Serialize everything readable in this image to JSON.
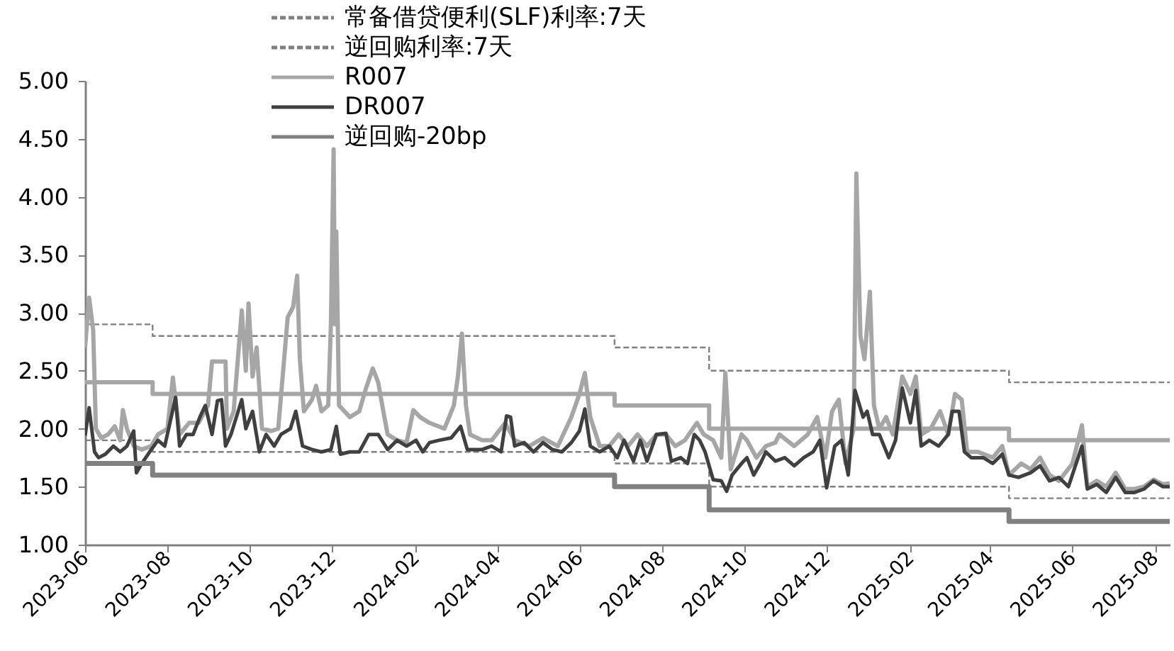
{
  "chart_data": {
    "type": "line",
    "xlim": [
      "2023-06-01",
      "2025-08-12"
    ],
    "xticks": [
      "2023-06",
      "2023-08",
      "2023-10",
      "2023-12",
      "2024-02",
      "2024-04",
      "2024-06",
      "2024-08",
      "2024-10",
      "2024-12",
      "2025-02",
      "2025-04",
      "2025-06",
      "2025-08"
    ],
    "ylim": [
      1,
      5
    ],
    "yticks": [
      {
        "value": 1,
        "label": "1.00"
      },
      {
        "value": 1.5,
        "label": "1.50"
      },
      {
        "value": 2,
        "label": "2.00"
      },
      {
        "value": 2.5,
        "label": "2.50"
      },
      {
        "value": 3,
        "label": "3.00"
      },
      {
        "value": 3.5,
        "label": "3.50"
      },
      {
        "value": 4,
        "label": "4.00"
      },
      {
        "value": 4.5,
        "label": "4.50"
      },
      {
        "value": 5,
        "label": "5.00"
      }
    ],
    "grid": false,
    "legend": "top",
    "marker": "none",
    "line_style": "solid",
    "series": [
      {
        "type": "step",
        "color": "#a6a6a6",
        "x": [
          "2023-06-01",
          "2023-07-21",
          "2024-06-27",
          "2024-09-05",
          "2025-04-15",
          "2025-08-12"
        ],
        "values": [
          2.4,
          2.3,
          2.2,
          2.0,
          1.9,
          1.9
        ]
      },
      {
        "name": "常备借贷便利(SLF)利率:7天",
        "type": "step",
        "color": "#808080",
        "line_style": "dashed",
        "x": [
          "2023-06-01",
          "2023-07-21",
          "2024-06-27",
          "2024-09-05",
          "2025-04-15",
          "2025-08-12"
        ],
        "values": [
          2.9,
          2.8,
          2.7,
          2.5,
          2.4,
          2.4
        ]
      },
      {
        "name": "逆回购利率:7天",
        "type": "step",
        "color": "#808080",
        "line_style": "dashed",
        "x": [
          "2023-06-01",
          "2023-07-21",
          "2024-06-27",
          "2024-09-05",
          "2025-04-15",
          "2025-08-12"
        ],
        "values": [
          1.9,
          1.8,
          1.7,
          1.5,
          1.4,
          1.4
        ]
      },
      {
        "name": "R007",
        "type": "line",
        "color": "#a6a6a6",
        "line_style": "solid",
        "x": [
          "2023-06-01",
          "2023-06-04",
          "2023-06-07",
          "2023-06-09",
          "2023-06-13",
          "2023-06-18",
          "2023-06-23",
          "2023-06-27",
          "2023-06-29",
          "2023-07-02",
          "2023-07-07",
          "2023-07-13",
          "2023-07-20",
          "2023-07-25",
          "2023-08-01",
          "2023-08-05",
          "2023-08-10",
          "2023-08-17",
          "2023-08-24",
          "2023-08-31",
          "2023-09-03",
          "2023-09-13",
          "2023-09-14",
          "2023-09-19",
          "2023-09-25",
          "2023-09-28",
          "2023-09-30",
          "2023-10-03",
          "2023-10-06",
          "2023-10-10",
          "2023-10-17",
          "2023-10-22",
          "2023-10-29",
          "2023-11-02",
          "2023-11-05",
          "2023-11-07",
          "2023-11-10",
          "2023-11-16",
          "2023-11-19",
          "2023-11-23",
          "2023-11-28",
          "2023-11-30",
          "2023-12-02",
          "2023-12-03",
          "2023-12-04",
          "2023-12-06",
          "2023-12-14",
          "2023-12-21",
          "2023-12-26",
          "2023-12-31",
          "2024-01-04",
          "2024-01-07",
          "2024-01-11",
          "2024-01-18",
          "2024-01-25",
          "2024-01-30",
          "2024-02-04",
          "2024-02-11",
          "2024-02-22",
          "2024-02-29",
          "2024-03-03",
          "2024-03-06",
          "2024-03-09",
          "2024-03-12",
          "2024-03-21",
          "2024-03-28",
          "2024-04-07",
          "2024-04-14",
          "2024-04-25",
          "2024-05-05",
          "2024-05-16",
          "2024-05-26",
          "2024-06-01",
          "2024-06-05",
          "2024-06-09",
          "2024-06-16",
          "2024-06-23",
          "2024-06-30",
          "2024-07-07",
          "2024-07-14",
          "2024-07-21",
          "2024-07-28",
          "2024-08-04",
          "2024-08-11",
          "2024-08-18",
          "2024-08-27",
          "2024-09-01",
          "2024-09-08",
          "2024-09-14",
          "2024-09-17",
          "2024-09-21",
          "2024-09-29",
          "2024-10-03",
          "2024-10-10",
          "2024-10-17",
          "2024-10-24",
          "2024-10-27",
          "2024-11-07",
          "2024-11-17",
          "2024-11-24",
          "2024-11-30",
          "2024-12-05",
          "2024-12-10",
          "2024-12-15",
          "2024-12-21",
          "2024-12-23",
          "2024-12-26",
          "2024-12-29",
          "2025-01-02",
          "2025-01-05",
          "2025-01-09",
          "2025-01-14",
          "2025-01-19",
          "2025-01-26",
          "2025-02-01",
          "2025-02-05",
          "2025-02-09",
          "2025-02-16",
          "2025-02-23",
          "2025-03-01",
          "2025-03-06",
          "2025-03-11",
          "2025-03-15",
          "2025-03-23",
          "2025-04-03",
          "2025-04-10",
          "2025-04-15",
          "2025-04-24",
          "2025-05-01",
          "2025-05-08",
          "2025-05-15",
          "2025-05-22",
          "2025-06-01",
          "2025-06-08",
          "2025-06-12",
          "2025-06-19",
          "2025-06-26",
          "2025-07-03",
          "2025-07-10",
          "2025-07-17",
          "2025-07-24",
          "2025-07-31",
          "2025-08-07",
          "2025-08-12"
        ],
        "values": [
          2.7,
          3.13,
          2.85,
          2.0,
          1.92,
          1.95,
          2.02,
          1.9,
          2.16,
          2.0,
          1.85,
          1.82,
          1.85,
          1.95,
          2.0,
          2.44,
          1.95,
          2.05,
          2.05,
          2.2,
          2.58,
          2.58,
          2.0,
          2.15,
          3.02,
          2.5,
          3.08,
          2.45,
          2.7,
          2.0,
          1.98,
          2.0,
          2.96,
          3.05,
          3.32,
          2.6,
          2.15,
          2.25,
          2.37,
          2.15,
          2.2,
          2.9,
          4.41,
          2.9,
          3.7,
          2.2,
          2.1,
          2.15,
          2.35,
          2.52,
          2.4,
          2.2,
          1.95,
          1.9,
          1.88,
          2.16,
          2.1,
          2.05,
          2.0,
          2.2,
          2.45,
          2.82,
          2.2,
          1.95,
          1.9,
          1.9,
          2.05,
          1.9,
          1.85,
          1.92,
          1.85,
          2.1,
          2.3,
          2.48,
          2.1,
          1.85,
          1.85,
          1.95,
          1.85,
          1.95,
          1.85,
          1.95,
          1.95,
          1.85,
          1.9,
          2.05,
          1.95,
          1.9,
          1.75,
          2.48,
          1.65,
          1.95,
          1.9,
          1.75,
          1.85,
          1.88,
          1.95,
          1.85,
          1.95,
          2.1,
          1.75,
          2.15,
          2.25,
          1.7,
          2.0,
          4.2,
          2.8,
          2.6,
          3.18,
          2.2,
          2.0,
          2.1,
          1.95,
          2.45,
          2.3,
          2.45,
          1.95,
          2.0,
          2.15,
          1.95,
          2.3,
          2.25,
          1.8,
          1.8,
          1.75,
          1.85,
          1.6,
          1.7,
          1.65,
          1.75,
          1.6,
          1.55,
          1.7,
          2.03,
          1.5,
          1.55,
          1.5,
          1.62,
          1.48,
          1.48,
          1.5,
          1.56,
          1.52,
          1.53
        ]
      },
      {
        "name": "DR007",
        "color": "#404040",
        "line_style": "solid",
        "x": [
          "2023-06-01",
          "2023-06-04",
          "2023-06-08",
          "2023-06-11",
          "2023-06-16",
          "2023-06-22",
          "2023-06-27",
          "2023-07-02",
          "2023-07-07",
          "2023-07-09",
          "2023-07-13",
          "2023-07-20",
          "2023-07-25",
          "2023-07-30",
          "2023-08-07",
          "2023-08-10",
          "2023-08-15",
          "2023-08-20",
          "2023-08-25",
          "2023-08-29",
          "2023-09-03",
          "2023-09-07",
          "2023-09-10",
          "2023-09-13",
          "2023-09-17",
          "2023-09-25",
          "2023-09-28",
          "2023-10-03",
          "2023-10-08",
          "2023-10-13",
          "2023-10-19",
          "2023-10-24",
          "2023-10-31",
          "2023-11-04",
          "2023-11-09",
          "2023-11-16",
          "2023-11-23",
          "2023-11-30",
          "2023-12-04",
          "2023-12-07",
          "2023-12-14",
          "2023-12-21",
          "2023-12-28",
          "2024-01-04",
          "2024-01-11",
          "2024-01-18",
          "2024-01-25",
          "2024-02-01",
          "2024-02-06",
          "2024-02-11",
          "2024-02-18",
          "2024-02-27",
          "2024-03-05",
          "2024-03-10",
          "2024-03-21",
          "2024-03-28",
          "2024-04-04",
          "2024-04-08",
          "2024-04-11",
          "2024-04-14",
          "2024-04-21",
          "2024-04-28",
          "2024-05-05",
          "2024-05-12",
          "2024-05-19",
          "2024-05-26",
          "2024-06-01",
          "2024-06-05",
          "2024-06-09",
          "2024-06-16",
          "2024-06-23",
          "2024-06-29",
          "2024-07-04",
          "2024-07-11",
          "2024-07-16",
          "2024-07-21",
          "2024-07-28",
          "2024-08-04",
          "2024-08-08",
          "2024-08-15",
          "2024-08-20",
          "2024-08-25",
          "2024-08-29",
          "2024-09-02",
          "2024-09-08",
          "2024-09-14",
          "2024-09-18",
          "2024-09-22",
          "2024-09-29",
          "2024-10-03",
          "2024-10-08",
          "2024-10-13",
          "2024-10-17",
          "2024-10-24",
          "2024-10-31",
          "2024-11-07",
          "2024-11-14",
          "2024-11-21",
          "2024-11-26",
          "2024-12-01",
          "2024-12-07",
          "2024-12-12",
          "2024-12-17",
          "2024-12-22",
          "2024-12-28",
          "2024-12-31",
          "2025-01-04",
          "2025-01-09",
          "2025-01-16",
          "2025-01-21",
          "2025-01-26",
          "2025-02-01",
          "2025-02-05",
          "2025-02-09",
          "2025-02-15",
          "2025-02-22",
          "2025-03-01",
          "2025-03-04",
          "2025-03-09",
          "2025-03-13",
          "2025-03-18",
          "2025-03-27",
          "2025-04-03",
          "2025-04-10",
          "2025-04-15",
          "2025-04-22",
          "2025-05-01",
          "2025-05-08",
          "2025-05-15",
          "2025-05-22",
          "2025-05-29",
          "2025-06-08",
          "2025-06-12",
          "2025-06-19",
          "2025-06-26",
          "2025-07-03",
          "2025-07-10",
          "2025-07-17",
          "2025-07-24",
          "2025-07-31",
          "2025-08-07",
          "2025-08-12"
        ],
        "values": [
          1.94,
          2.18,
          1.8,
          1.75,
          1.78,
          1.85,
          1.8,
          1.85,
          1.98,
          1.62,
          1.7,
          1.82,
          1.9,
          1.85,
          2.27,
          1.85,
          1.95,
          1.95,
          2.1,
          2.2,
          1.95,
          2.24,
          2.25,
          1.85,
          1.95,
          2.25,
          2.0,
          2.15,
          1.8,
          1.95,
          1.85,
          1.95,
          2.0,
          2.15,
          1.85,
          1.82,
          1.8,
          1.82,
          2.02,
          1.78,
          1.8,
          1.8,
          1.95,
          1.95,
          1.82,
          1.9,
          1.85,
          1.9,
          1.8,
          1.88,
          1.9,
          1.92,
          2.02,
          1.82,
          1.82,
          1.85,
          1.8,
          2.11,
          2.1,
          1.85,
          1.88,
          1.8,
          1.88,
          1.82,
          1.8,
          1.88,
          1.98,
          2.17,
          1.85,
          1.8,
          1.85,
          1.75,
          1.9,
          1.72,
          1.9,
          1.72,
          1.95,
          1.96,
          1.72,
          1.75,
          1.7,
          1.95,
          1.9,
          1.8,
          1.56,
          1.55,
          1.46,
          1.6,
          1.7,
          1.75,
          1.6,
          1.7,
          1.8,
          1.72,
          1.75,
          1.68,
          1.75,
          1.8,
          1.9,
          1.49,
          1.85,
          1.9,
          1.6,
          2.33,
          2.1,
          2.15,
          1.95,
          1.95,
          1.75,
          1.9,
          2.35,
          2.05,
          2.33,
          1.85,
          1.9,
          1.85,
          1.95,
          2.15,
          2.15,
          1.8,
          1.75,
          1.75,
          1.7,
          1.78,
          1.6,
          1.58,
          1.62,
          1.68,
          1.55,
          1.58,
          1.5,
          1.85,
          1.48,
          1.52,
          1.45,
          1.58,
          1.45,
          1.45,
          1.48,
          1.55,
          1.5,
          1.5
        ]
      },
      {
        "name": "逆回购-20bp",
        "type": "step",
        "color": "#808080",
        "line_style": "solid",
        "x": [
          "2023-06-01",
          "2023-07-21",
          "2024-06-27",
          "2024-09-05",
          "2025-04-15",
          "2025-08-12"
        ],
        "values": [
          1.7,
          1.6,
          1.5,
          1.3,
          1.2,
          1.2
        ]
      }
    ]
  }
}
